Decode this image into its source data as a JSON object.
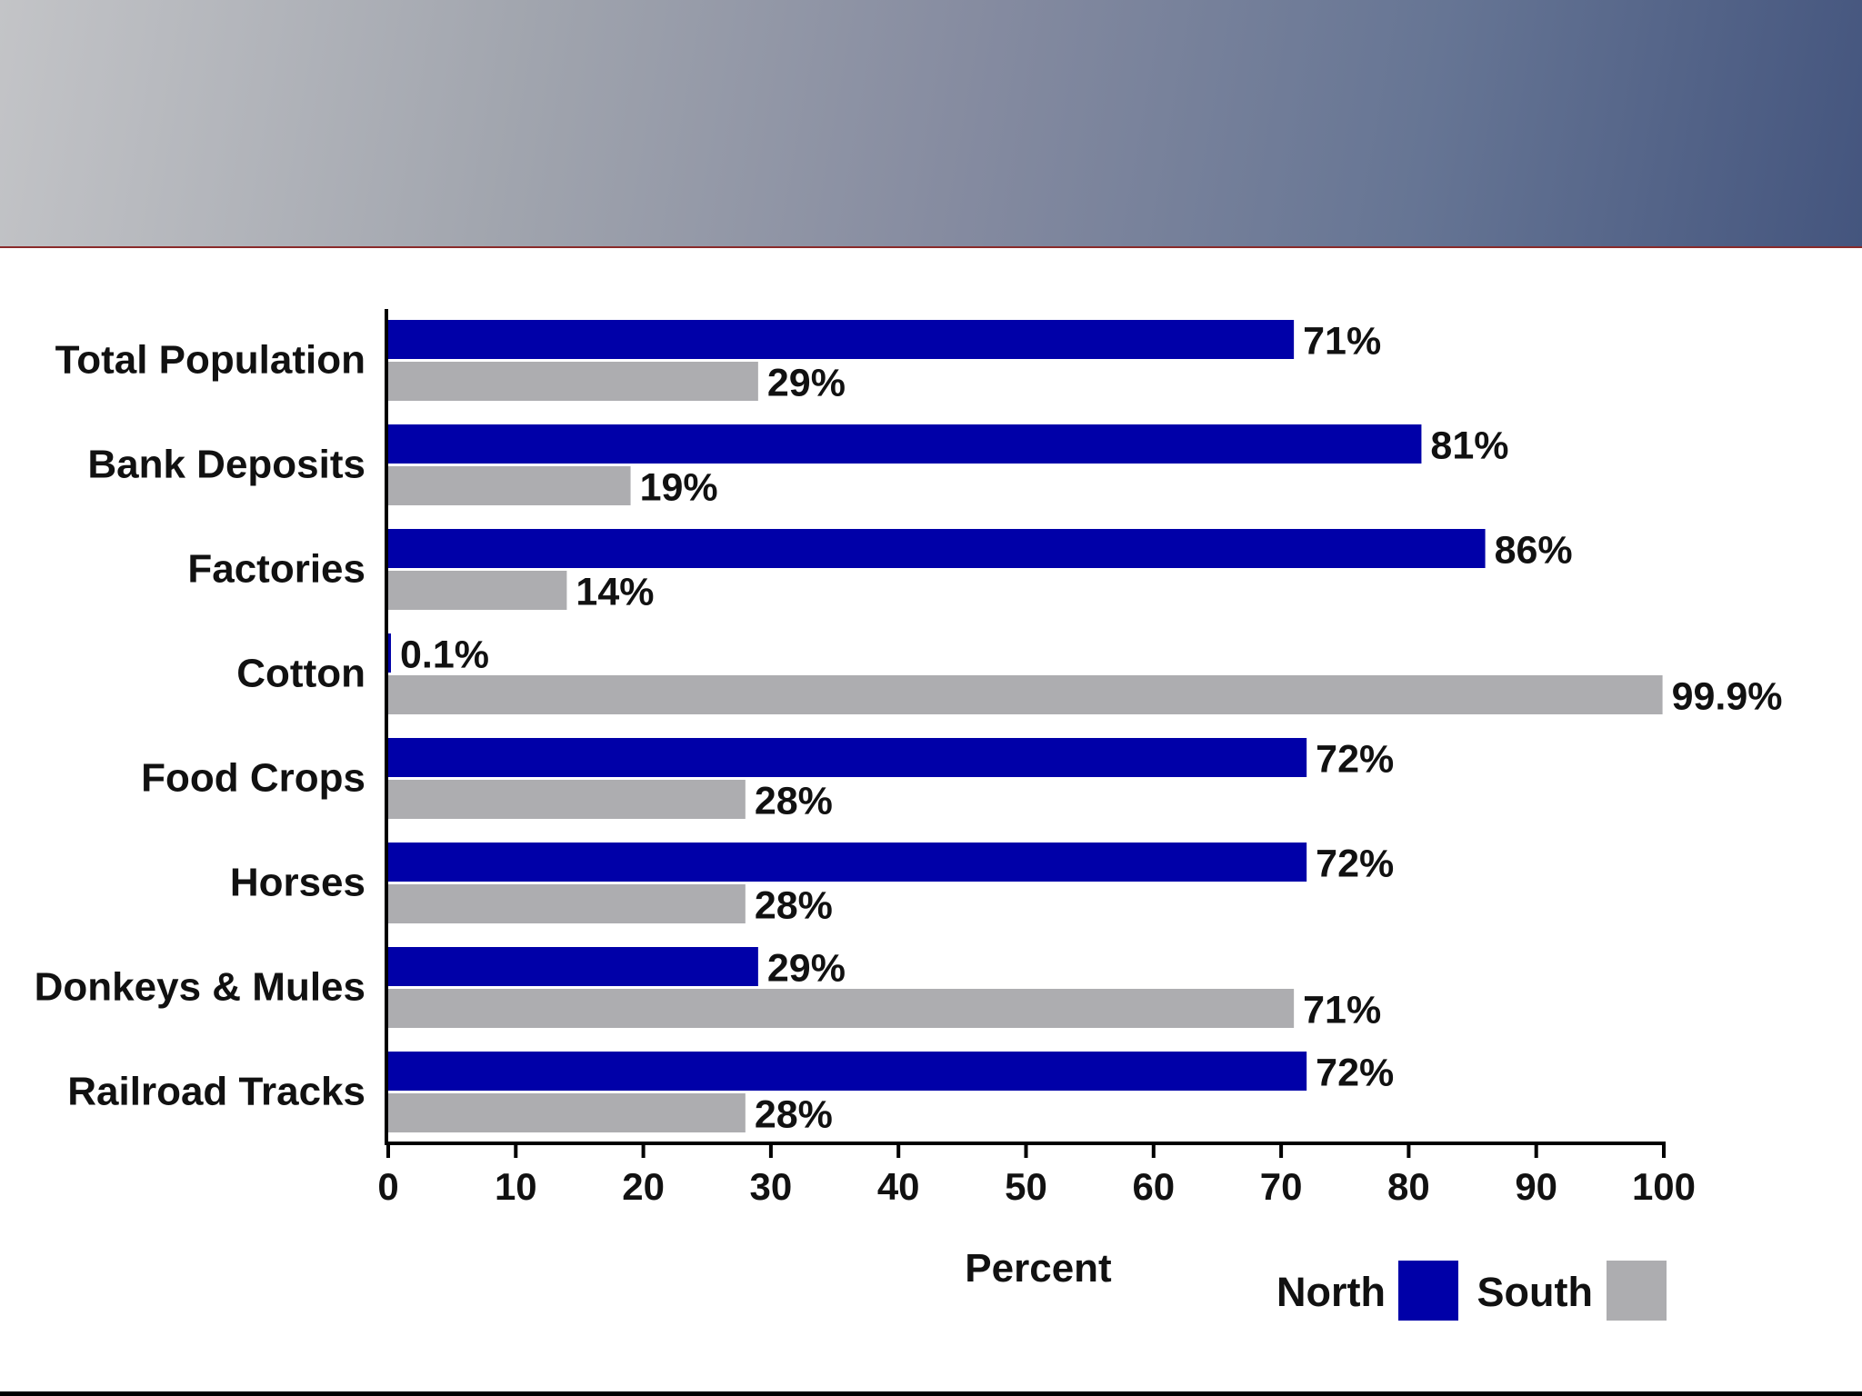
{
  "chart_data": {
    "type": "bar",
    "orientation": "horizontal",
    "categories": [
      "Total Population",
      "Bank Deposits",
      "Factories",
      "Cotton",
      "Food Crops",
      "Horses",
      "Donkeys & Mules",
      "Railroad Tracks"
    ],
    "series": [
      {
        "name": "North",
        "color": "#0000a8",
        "values": [
          71,
          81,
          86,
          0.1,
          72,
          72,
          29,
          72
        ],
        "labels": [
          "71%",
          "81%",
          "86%",
          "0.1%",
          "72%",
          "72%",
          "29%",
          "72%"
        ]
      },
      {
        "name": "South",
        "color": "#adadb0",
        "values": [
          29,
          19,
          14,
          99.9,
          28,
          28,
          71,
          28
        ],
        "labels": [
          "29%",
          "19%",
          "14%",
          "99.9%",
          "28%",
          "28%",
          "71%",
          "28%"
        ]
      }
    ],
    "xlabel": "Percent",
    "xlim": [
      0,
      100
    ],
    "xticks": [
      0,
      10,
      20,
      30,
      40,
      50,
      60,
      70,
      80,
      90,
      100
    ],
    "legend_position": "bottom-right",
    "grid": false
  }
}
